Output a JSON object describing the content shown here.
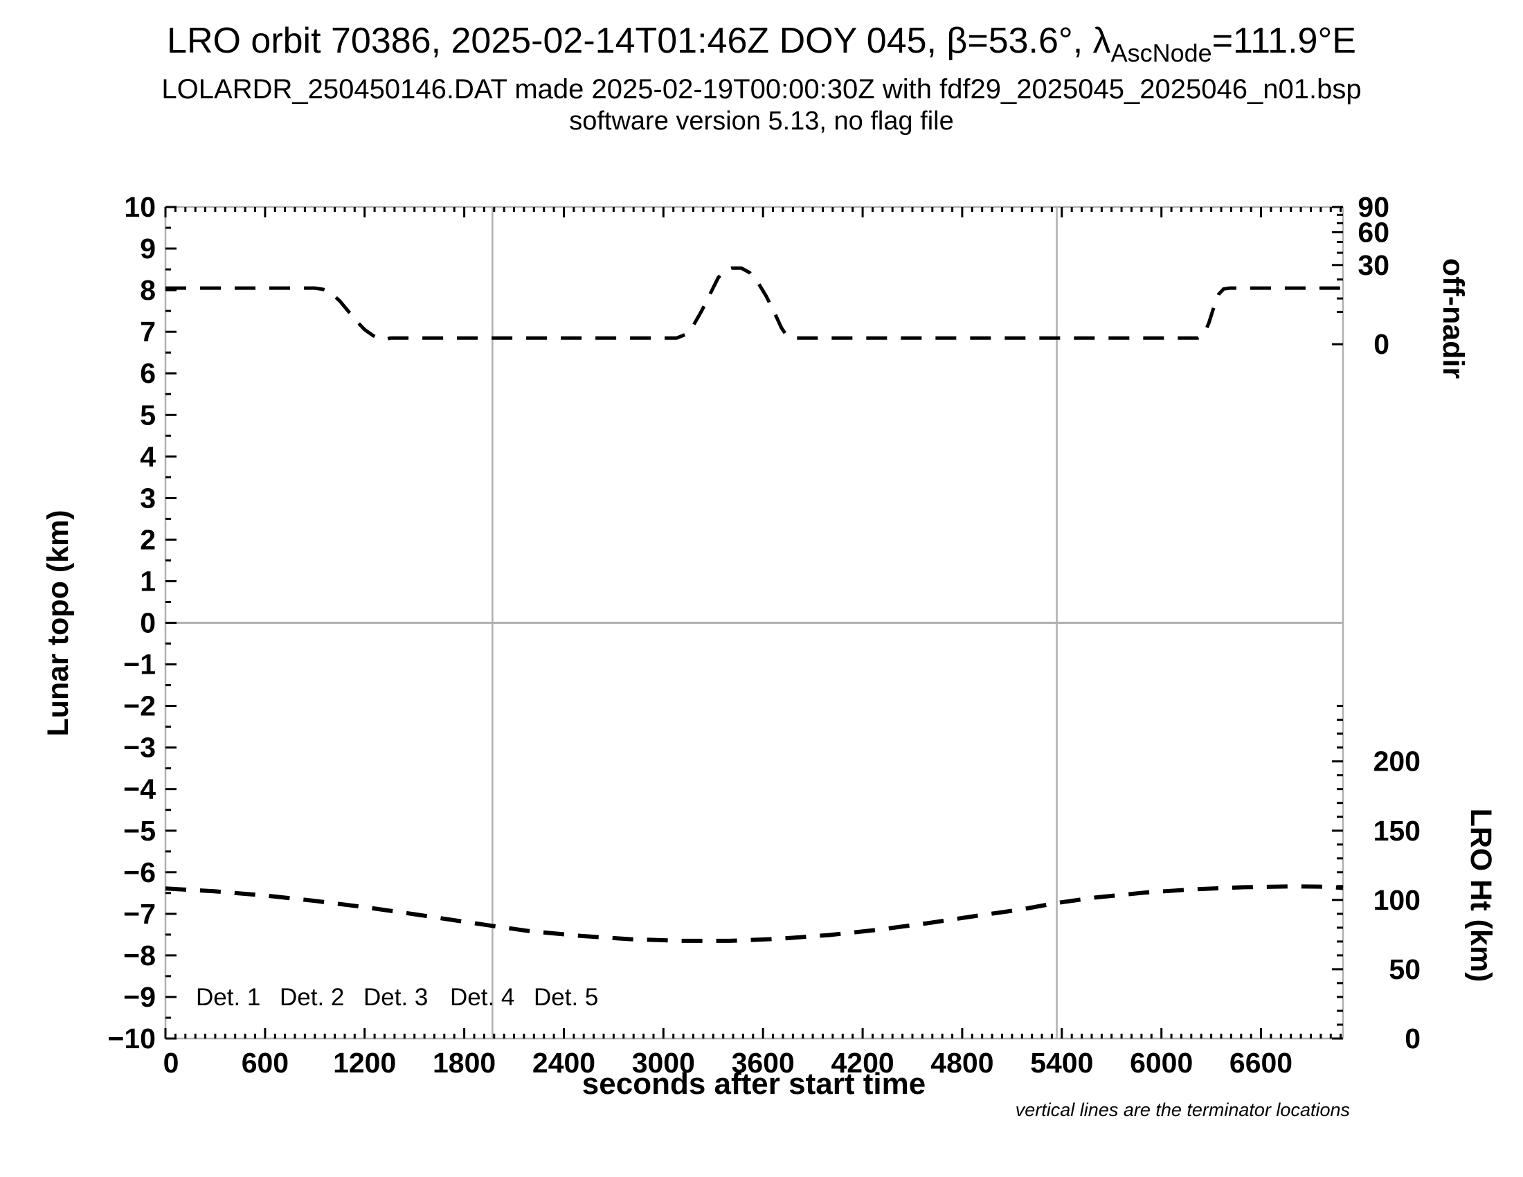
{
  "header": {
    "title_prefix": "LRO orbit 70386, 2025-02-14T01:46Z DOY 045, β=53.6°, λ",
    "title_lambda_subscript": "AscNode",
    "title_suffix": "=111.9°E",
    "subtitle": "LOLARDR_250450146.DAT made 2025-02-19T00:00:30Z with fdf29_2025045_2025046_n01.bsp",
    "version_line": "software version 5.13, no flag file"
  },
  "chart_data": {
    "type": "line",
    "title": "LRO orbit 70386, 2025-02-14T01:46Z DOY 045, β=53.6°, λAscNode=111.9°E",
    "xlabel": "seconds after start time",
    "x_axis": {
      "min": 0,
      "max": 7094,
      "major_tick": 600,
      "minor_tick": 60,
      "labeled_ticks": [
        0,
        600,
        1200,
        1800,
        2400,
        3000,
        3600,
        4200,
        4800,
        5400,
        6000,
        6600
      ]
    },
    "y_left_axis": {
      "label": "Lunar topo (km)",
      "min": -10,
      "max": 10,
      "major_tick": 1,
      "minor_tick": 0.5
    },
    "y_right_offnadir_axis": {
      "label": "off-nadir",
      "unit": "degrees",
      "major_ticks": [
        90,
        60,
        30,
        0
      ],
      "minor_ticks": [
        80,
        70,
        50,
        40,
        20,
        10,
        5
      ],
      "map_offset_topo": 6.7,
      "map_scale_topo": 3.3,
      "mapping": "topo_units = 6.7 + 3.3*sqrt(deg/90)"
    },
    "y_right_height_axis": {
      "label": "LRO Ht (km)",
      "major_ticks": [
        200,
        150,
        100,
        50,
        0
      ],
      "minor_tick_km": 10,
      "minor_tick_max_km": 240,
      "km_per_topo_unit": 30,
      "mapping": "topo_units = -10 + km/30"
    },
    "grid": {
      "y_zero_line": true,
      "frame_color": "#b0b0b0"
    },
    "terminator_lines_s": [
      1970,
      5370
    ],
    "series": [
      {
        "name": "off-nadir angle (right upper scale)",
        "color": "#000000",
        "linestyle": "dashed",
        "stroke_width": 5,
        "points_t_topo": [
          [
            0,
            8.05
          ],
          [
            500,
            8.05
          ],
          [
            900,
            8.05
          ],
          [
            950,
            8.02
          ],
          [
            1000,
            7.92
          ],
          [
            1050,
            7.74
          ],
          [
            1100,
            7.5
          ],
          [
            1150,
            7.26
          ],
          [
            1200,
            7.05
          ],
          [
            1250,
            6.91
          ],
          [
            1290,
            6.83
          ],
          [
            1320,
            6.81
          ],
          [
            1355,
            6.85
          ],
          [
            2000,
            6.85
          ],
          [
            2600,
            6.85
          ],
          [
            3080,
            6.85
          ],
          [
            3130,
            6.93
          ],
          [
            3180,
            7.15
          ],
          [
            3230,
            7.5
          ],
          [
            3280,
            7.9
          ],
          [
            3330,
            8.3
          ],
          [
            3370,
            8.48
          ],
          [
            3410,
            8.53
          ],
          [
            3470,
            8.53
          ],
          [
            3520,
            8.42
          ],
          [
            3570,
            8.18
          ],
          [
            3620,
            7.85
          ],
          [
            3670,
            7.45
          ],
          [
            3710,
            7.1
          ],
          [
            3740,
            6.92
          ],
          [
            3775,
            6.85
          ],
          [
            4400,
            6.85
          ],
          [
            5200,
            6.85
          ],
          [
            6220,
            6.85
          ],
          [
            6255,
            6.93
          ],
          [
            6285,
            7.2
          ],
          [
            6315,
            7.58
          ],
          [
            6345,
            7.9
          ],
          [
            6375,
            8.03
          ],
          [
            6410,
            8.05
          ],
          [
            6800,
            8.05
          ],
          [
            7094,
            8.05
          ]
        ]
      },
      {
        "name": "LRO height (right lower scale)",
        "color": "#000000",
        "linestyle": "dashed",
        "stroke_width": 6,
        "points_t_topo": [
          [
            0,
            -6.39
          ],
          [
            300,
            -6.46
          ],
          [
            600,
            -6.56
          ],
          [
            900,
            -6.69
          ],
          [
            1200,
            -6.84
          ],
          [
            1500,
            -7.01
          ],
          [
            1800,
            -7.19
          ],
          [
            1970,
            -7.29
          ],
          [
            2200,
            -7.42
          ],
          [
            2500,
            -7.53
          ],
          [
            2800,
            -7.61
          ],
          [
            3100,
            -7.65
          ],
          [
            3400,
            -7.65
          ],
          [
            3700,
            -7.6
          ],
          [
            4000,
            -7.51
          ],
          [
            4300,
            -7.38
          ],
          [
            4600,
            -7.22
          ],
          [
            4900,
            -7.04
          ],
          [
            5150,
            -6.9
          ],
          [
            5370,
            -6.74
          ],
          [
            5600,
            -6.61
          ],
          [
            5900,
            -6.49
          ],
          [
            6200,
            -6.41
          ],
          [
            6500,
            -6.36
          ],
          [
            6800,
            -6.34
          ],
          [
            7000,
            -6.35
          ],
          [
            7094,
            -6.38
          ]
        ]
      }
    ],
    "legend": {
      "position": "bottom-left-inside",
      "items": [
        {
          "label": "Det. 1",
          "color": "#000000"
        },
        {
          "label": "Det. 2",
          "color": "#0000ff"
        },
        {
          "label": "Det. 3",
          "color": "#00d400"
        },
        {
          "label": "Det. 4",
          "color": "#ffa500"
        },
        {
          "label": "Det. 5",
          "color": "#ff0000"
        }
      ]
    },
    "annotations": {
      "footnote": "vertical lines are the terminator locations"
    }
  }
}
